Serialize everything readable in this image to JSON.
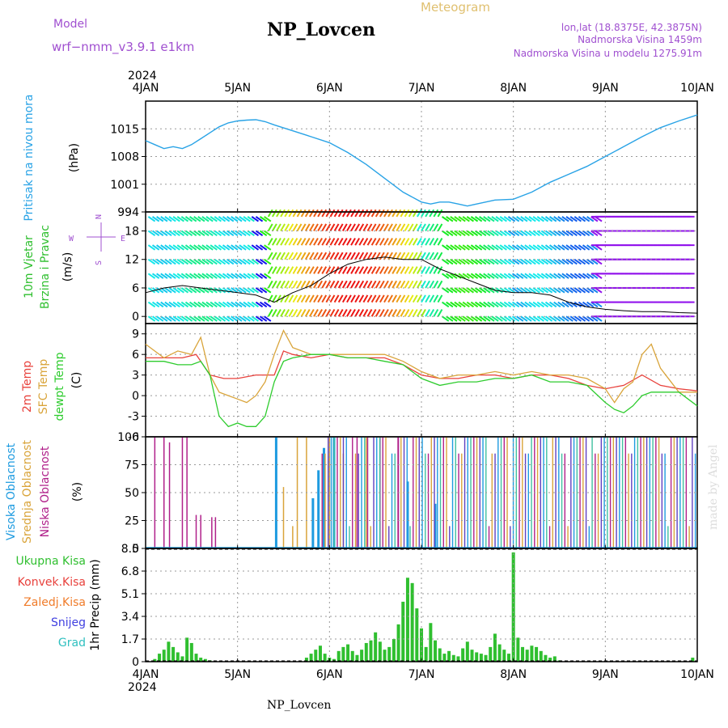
{
  "header": {
    "model_label": "Model",
    "model_name": "wrf−nmm_v3.9.1  e1km",
    "station": "NP_Lovcen",
    "meteogram_label": "Meteogram",
    "coords": "lon,lat (18.8375E, 42.3875N)",
    "elevation": "Nadmorska Visina 1459m",
    "model_elevation": "Nadmorska Visina u modelu 1275.91m",
    "year": "2024",
    "footer_station": "NP_Lovcen",
    "credit": "made by Angel"
  },
  "colors": {
    "pressure": "#29a3e6",
    "temp_2m": "#e8413c",
    "temp_sfc": "#d9a43a",
    "dewpoint": "#2ecc2e",
    "cloud_high": "#1e9be0",
    "cloud_mid": "#d9a43a",
    "cloud_low": "#b0208a",
    "precip_total": "#2fbf2f",
    "precip_conv": "#e8413c",
    "precip_frz": "#f07c2a",
    "snow": "#4040e0",
    "graupel": "#30c0c0",
    "label_purple": "#a050d0",
    "label_gold": "#e0c070"
  },
  "chart_data": [
    {
      "type": "line",
      "panel": "pressure",
      "ylabel_left": "Pritisak na nivou mora",
      "ylabel": "(hPa)",
      "x_ticks": [
        "4JAN",
        "5JAN",
        "6JAN",
        "7JAN",
        "8JAN",
        "9JAN",
        "10JAN"
      ],
      "ylim": [
        994,
        1022
      ],
      "yticks": [
        994,
        1001,
        1008,
        1015
      ],
      "series": [
        {
          "name": "Pritisak na nivou mora",
          "x": [
            0,
            0.1,
            0.2,
            0.3,
            0.4,
            0.5,
            0.6,
            0.7,
            0.8,
            0.9,
            1.0,
            1.1,
            1.2,
            1.3,
            1.4,
            1.6,
            1.8,
            2.0,
            2.2,
            2.4,
            2.6,
            2.8,
            3.0,
            3.1,
            3.2,
            3.3,
            3.4,
            3.5,
            3.6,
            3.8,
            4.0,
            4.2,
            4.4,
            4.6,
            4.8,
            5.0,
            5.2,
            5.4,
            5.6,
            5.8,
            6.0
          ],
          "values": [
            1012,
            1011,
            1010,
            1010.5,
            1010,
            1011,
            1012.5,
            1014,
            1015.5,
            1016.5,
            1017,
            1017.2,
            1017.3,
            1016.8,
            1016,
            1014.5,
            1013,
            1011.5,
            1009,
            1006,
            1002.5,
            999,
            996.5,
            996,
            996.5,
            996.5,
            996,
            995.5,
            996,
            997,
            997.2,
            999,
            1001.5,
            1003.5,
            1005.5,
            1008,
            1010.5,
            1013,
            1015.3,
            1017,
            1018.5
          ]
        }
      ]
    },
    {
      "type": "line",
      "panel": "wind",
      "ylabel_left": "10m Vjetar",
      "ylabel_left2": "Brzina i Pravac",
      "ylabel": "(m/s)",
      "compass": [
        "N",
        "W",
        "E",
        "S"
      ],
      "ylim": [
        -1.5,
        22
      ],
      "yticks": [
        0,
        6,
        12,
        18
      ],
      "series": [
        {
          "name": "Brzina",
          "x": [
            0,
            0.2,
            0.4,
            0.6,
            0.8,
            1.0,
            1.2,
            1.4,
            1.6,
            1.8,
            2.0,
            2.2,
            2.4,
            2.6,
            2.8,
            3.0,
            3.2,
            3.4,
            3.6,
            3.8,
            4.0,
            4.2,
            4.4,
            4.6,
            4.8,
            5.0,
            5.2,
            5.4,
            5.6,
            5.8,
            6.0
          ],
          "values": [
            5,
            6,
            6.5,
            6,
            5.5,
            5,
            4.5,
            3,
            5,
            6.5,
            9,
            11,
            12,
            12.5,
            12,
            12,
            10,
            8.5,
            7,
            5.5,
            5,
            5,
            4.5,
            3,
            2,
            1.5,
            1.2,
            1,
            1,
            0.8,
            0.7
          ]
        }
      ]
    },
    {
      "type": "line",
      "panel": "temperature",
      "ylabel_left": "2m Temp",
      "ylabel_left2": "SFC Temp",
      "ylabel_left3": "dewpt Temp",
      "ylabel": "(C)",
      "ylim": [
        -6,
        10.5
      ],
      "yticks": [
        -6,
        -3,
        0,
        3,
        6,
        9
      ],
      "series": [
        {
          "name": "2m Temp",
          "x": [
            0,
            0.2,
            0.4,
            0.55,
            0.7,
            0.85,
            1.0,
            1.2,
            1.4,
            1.5,
            1.6,
            1.8,
            2.0,
            2.2,
            2.4,
            2.6,
            2.8,
            3.0,
            3.2,
            3.4,
            3.6,
            3.8,
            4.0,
            4.2,
            4.4,
            4.6,
            4.8,
            5.0,
            5.2,
            5.4,
            5.6,
            5.8,
            6.0
          ],
          "values": [
            5.5,
            5.5,
            5.5,
            6,
            3,
            2.5,
            2.5,
            3,
            3,
            6.5,
            6,
            5.5,
            6,
            5.5,
            5.5,
            5.5,
            4.5,
            3,
            2.5,
            2.5,
            3,
            3,
            2.5,
            3,
            3,
            2.5,
            1.5,
            1,
            1.5,
            3,
            1.5,
            1,
            0.7
          ]
        },
        {
          "name": "SFC Temp",
          "x": [
            0,
            0.2,
            0.35,
            0.5,
            0.6,
            0.7,
            0.8,
            0.9,
            1.0,
            1.1,
            1.2,
            1.3,
            1.4,
            1.5,
            1.6,
            1.8,
            2.0,
            2.2,
            2.4,
            2.6,
            2.8,
            3.0,
            3.2,
            3.4,
            3.6,
            3.8,
            4.0,
            4.2,
            4.4,
            4.6,
            4.8,
            5.0,
            5.1,
            5.2,
            5.3,
            5.4,
            5.5,
            5.6,
            5.8,
            6.0
          ],
          "values": [
            7.5,
            5.5,
            6.5,
            6,
            8.5,
            3,
            0.5,
            0,
            -0.5,
            -1,
            0,
            2,
            6,
            9.5,
            7,
            6,
            6,
            6,
            6,
            6,
            5,
            3.5,
            2.5,
            3,
            3,
            3.5,
            3,
            3.5,
            3,
            3,
            2.5,
            1,
            -1,
            1,
            2,
            6,
            7.5,
            4,
            0.5,
            0.5
          ]
        },
        {
          "name": "dewpt Temp",
          "x": [
            0,
            0.2,
            0.35,
            0.5,
            0.6,
            0.7,
            0.8,
            0.9,
            1.0,
            1.1,
            1.2,
            1.3,
            1.4,
            1.5,
            1.6,
            1.8,
            2.0,
            2.2,
            2.4,
            2.6,
            2.8,
            3.0,
            3.2,
            3.4,
            3.6,
            3.8,
            4.0,
            4.2,
            4.4,
            4.6,
            4.8,
            5.0,
            5.1,
            5.2,
            5.3,
            5.4,
            5.5,
            5.6,
            5.8,
            6.0
          ],
          "values": [
            5,
            5,
            4.5,
            4.5,
            5,
            3,
            -3,
            -4.5,
            -4,
            -4.5,
            -4.5,
            -3,
            2,
            5,
            5.5,
            6,
            6,
            5.5,
            5.5,
            5,
            4.5,
            2.5,
            1.5,
            2,
            2,
            2.5,
            2.5,
            3,
            2,
            2,
            1.5,
            -1,
            -2,
            -2.5,
            -1.5,
            0,
            0.5,
            0.5,
            0.5,
            -1.5
          ]
        }
      ]
    },
    {
      "type": "bar",
      "panel": "cloud",
      "ylabel_left": "Visoka Oblacnost",
      "ylabel_left2": "Srednja Oblacnost",
      "ylabel_left3": "Niska Oblacnost",
      "ylabel": "(%)",
      "ylim": [
        0,
        100
      ],
      "yticks": [
        0,
        25,
        50,
        75,
        100
      ],
      "low": [
        [
          0.1,
          100
        ],
        [
          0.2,
          100
        ],
        [
          0.26,
          95
        ],
        [
          0.4,
          100
        ],
        [
          0.45,
          100
        ],
        [
          0.55,
          30
        ],
        [
          0.6,
          30
        ],
        [
          0.72,
          28
        ],
        [
          0.76,
          28
        ],
        [
          2.3,
          100
        ],
        [
          2.55,
          100
        ],
        [
          2.75,
          100
        ]
      ],
      "mid": [
        [
          1.5,
          55
        ],
        [
          1.6,
          20
        ],
        [
          1.65,
          100
        ],
        [
          1.75,
          100
        ],
        [
          2.0,
          100
        ],
        [
          2.15,
          85
        ],
        [
          2.4,
          100
        ]
      ],
      "high": [
        [
          1.42,
          100
        ],
        [
          1.82,
          45
        ],
        [
          1.88,
          70
        ],
        [
          1.94,
          90
        ],
        [
          2.05,
          100
        ],
        [
          2.85,
          60
        ],
        [
          3.15,
          40
        ]
      ],
      "dense_start": 1.5,
      "dense_end": 6.0
    },
    {
      "type": "bar",
      "panel": "precip",
      "ylabel_left": "Ukupna Kisa",
      "ylabel_left2": "Konvek.Kisa",
      "ylabel_left3": "Zaledj.Kisa",
      "ylabel_left4": "Snijeg",
      "ylabel_left5": "Grad",
      "ylabel": "1hr Precip (mm)",
      "ylim": [
        0,
        8.5
      ],
      "yticks": [
        0,
        1.7,
        3.4,
        5.1,
        6.8,
        8.5
      ],
      "x": [
        0.1,
        0.15,
        0.2,
        0.25,
        0.3,
        0.35,
        0.4,
        0.45,
        0.5,
        0.55,
        0.6,
        0.65,
        0.7,
        1.75,
        1.8,
        1.85,
        1.9,
        1.95,
        2.0,
        2.05,
        2.1,
        2.15,
        2.2,
        2.25,
        2.3,
        2.35,
        2.4,
        2.45,
        2.5,
        2.55,
        2.6,
        2.65,
        2.7,
        2.75,
        2.8,
        2.85,
        2.9,
        2.95,
        3.0,
        3.05,
        3.1,
        3.15,
        3.2,
        3.25,
        3.3,
        3.35,
        3.4,
        3.45,
        3.5,
        3.55,
        3.6,
        3.65,
        3.7,
        3.75,
        3.8,
        3.85,
        3.9,
        3.95,
        4.0,
        4.05,
        4.1,
        4.15,
        4.2,
        4.25,
        4.3,
        4.35,
        4.4,
        4.45,
        4.5,
        5.95
      ],
      "values": [
        0.2,
        0.6,
        0.9,
        1.5,
        1.1,
        0.7,
        0.4,
        1.8,
        1.4,
        0.6,
        0.3,
        0.2,
        0.1,
        0.3,
        0.6,
        0.9,
        1.2,
        0.6,
        0.3,
        0.2,
        0.8,
        1.1,
        1.3,
        0.8,
        0.5,
        0.9,
        1.4,
        1.6,
        2.2,
        1.5,
        0.9,
        1.1,
        1.7,
        2.8,
        4.5,
        6.3,
        5.9,
        4.0,
        2.5,
        1.1,
        2.9,
        1.6,
        1.0,
        0.6,
        0.8,
        0.5,
        0.4,
        1.0,
        1.5,
        0.9,
        0.7,
        0.6,
        0.5,
        1.1,
        2.1,
        1.3,
        0.9,
        0.6,
        8.2,
        1.8,
        1.1,
        0.9,
        1.2,
        1.1,
        0.8,
        0.5,
        0.3,
        0.4,
        0.1,
        0.3
      ]
    }
  ]
}
